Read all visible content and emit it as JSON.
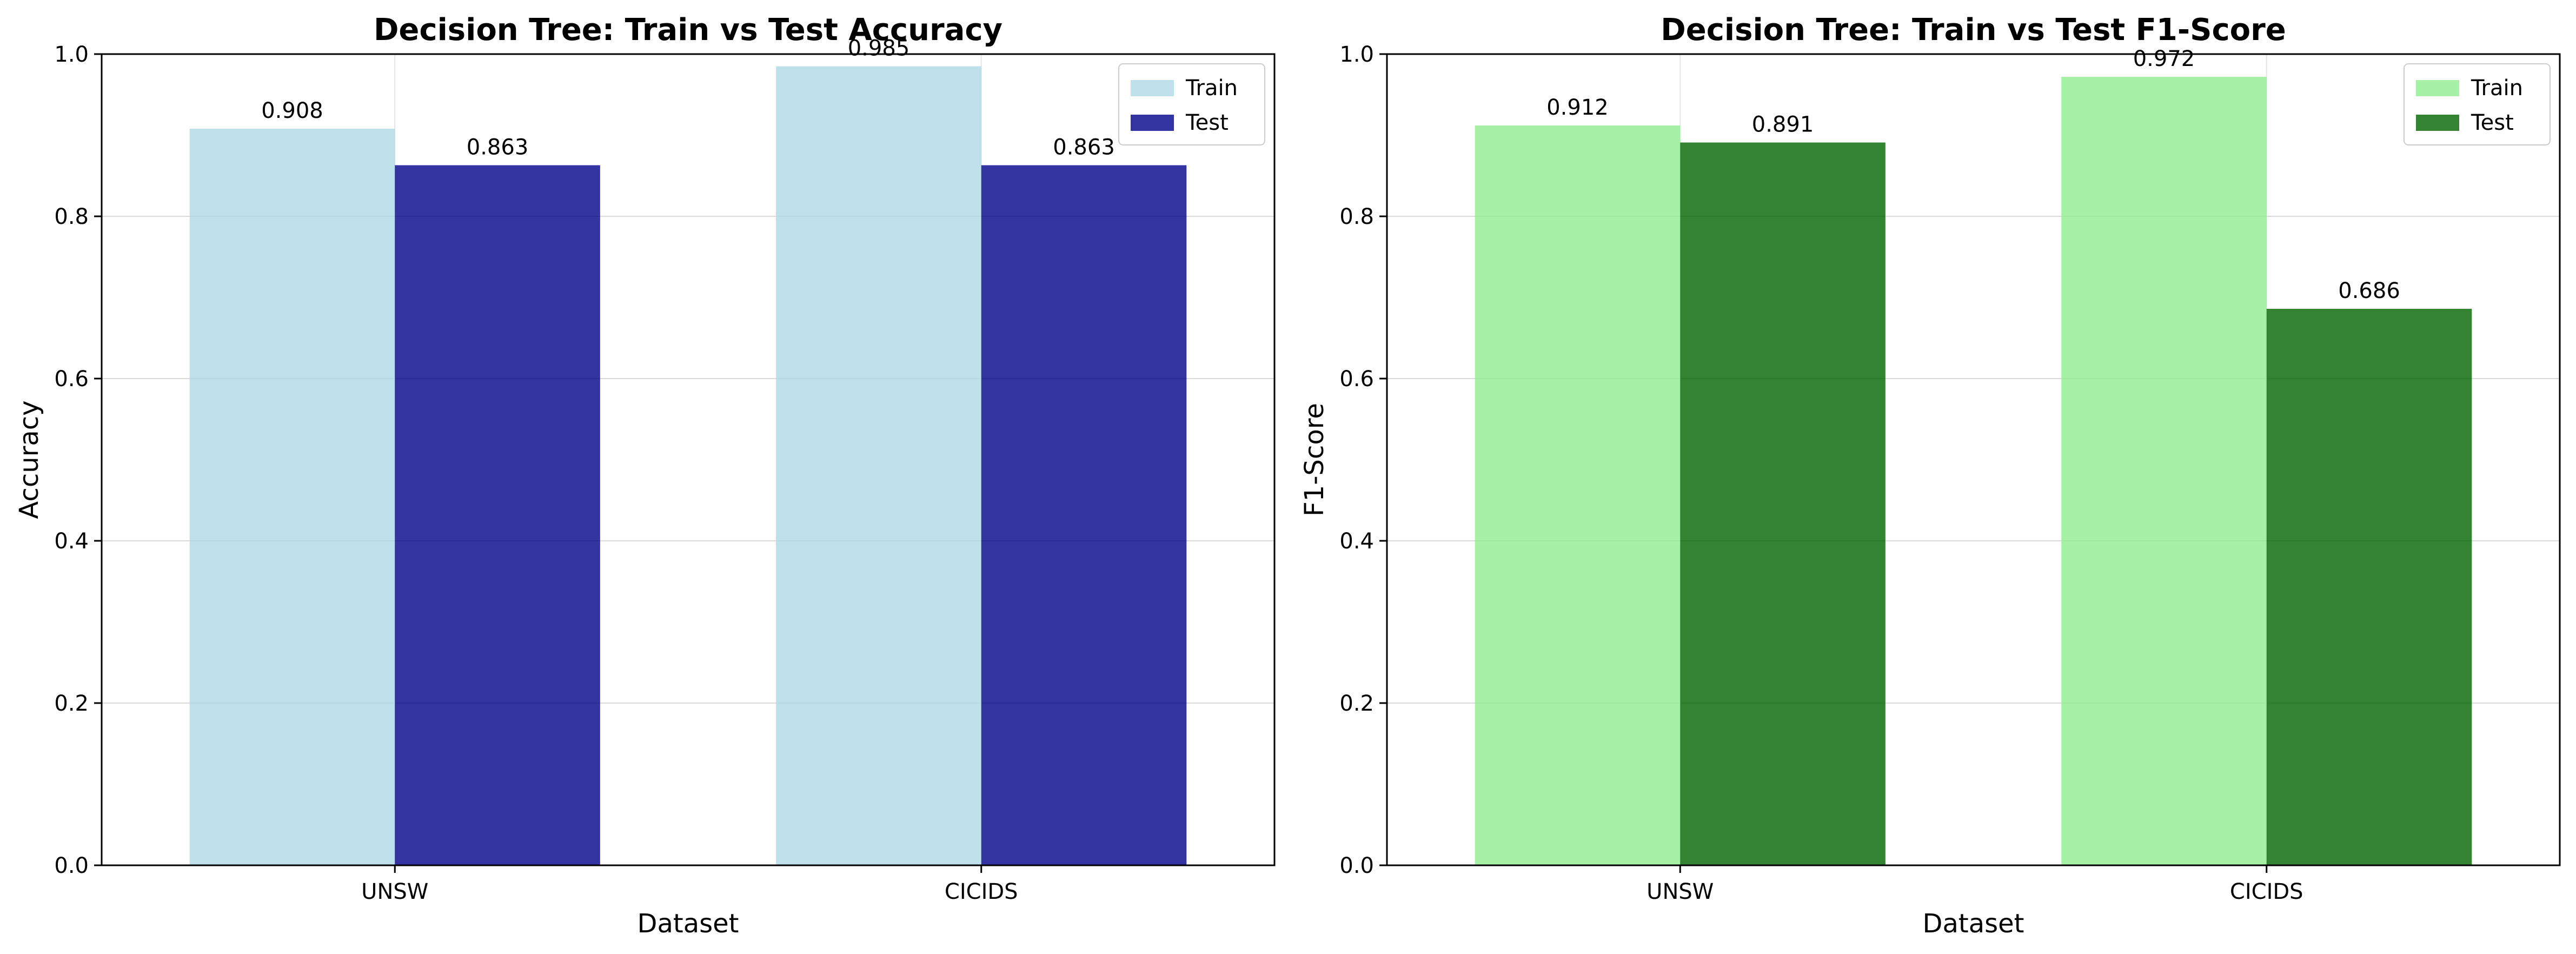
{
  "chart_data": [
    {
      "type": "bar",
      "title": "Decision Tree: Train vs Test Accuracy",
      "xlabel": "Dataset",
      "ylabel": "Accuracy",
      "categories": [
        "UNSW",
        "CICIDS"
      ],
      "series": [
        {
          "name": "Train",
          "values": [
            0.908,
            0.985
          ],
          "color": "#add8e6",
          "value_labels": [
            "0.908",
            "0.985"
          ]
        },
        {
          "name": "Test",
          "values": [
            0.863,
            0.863
          ],
          "color": "#00008b",
          "value_labels": [
            "0.863",
            "0.863"
          ]
        }
      ],
      "ylim": [
        0,
        1.0
      ],
      "yticks": [
        "0.0",
        "0.2",
        "0.4",
        "0.6",
        "0.8",
        "1.0"
      ],
      "grid": true,
      "legend": "top-right"
    },
    {
      "type": "bar",
      "title": "Decision Tree: Train vs Test F1-Score",
      "xlabel": "Dataset",
      "ylabel": "F1-Score",
      "categories": [
        "UNSW",
        "CICIDS"
      ],
      "series": [
        {
          "name": "Train",
          "values": [
            0.912,
            0.972
          ],
          "color": "#90ee90",
          "value_labels": [
            "0.912",
            "0.972"
          ]
        },
        {
          "name": "Test",
          "values": [
            0.891,
            0.686
          ],
          "color": "#006400",
          "value_labels": [
            "0.891",
            "0.686"
          ]
        }
      ],
      "ylim": [
        0,
        1.0
      ],
      "yticks": [
        "0.0",
        "0.2",
        "0.4",
        "0.6",
        "0.8",
        "1.0"
      ],
      "grid": true,
      "legend": "top-right"
    }
  ]
}
